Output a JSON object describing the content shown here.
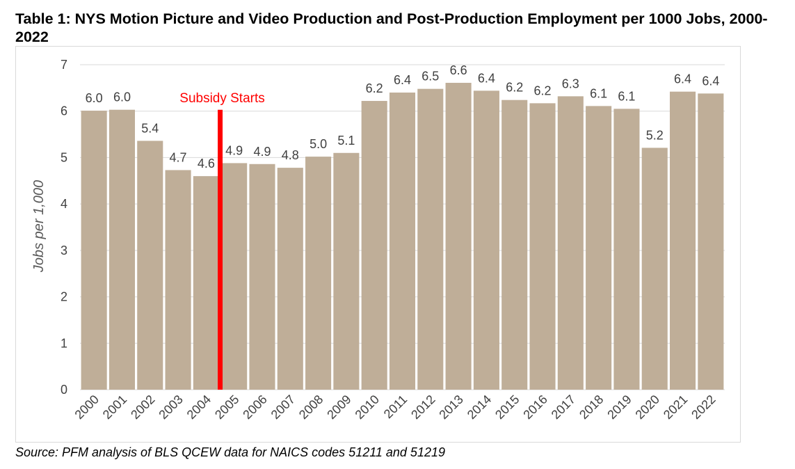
{
  "title": "Table 1: NYS Motion Picture and Video Production and Post-Production Employment per 1000 Jobs, 2000-2022",
  "source": "Source: PFM analysis of BLS QCEW data for NAICS codes 51211 and 51219",
  "chart_data": {
    "type": "bar",
    "title": "Table 1: NYS Motion Picture and Video Production and Post-Production Employment per 1000 Jobs, 2000-2022",
    "xlabel": "",
    "ylabel": "Jobs per 1,000",
    "ylim": [
      0,
      7
    ],
    "yticks": [
      0,
      1,
      2,
      3,
      4,
      5,
      6,
      7
    ],
    "grid": true,
    "categories": [
      "2000",
      "2001",
      "2002",
      "2003",
      "2004",
      "2005",
      "2006",
      "2007",
      "2008",
      "2009",
      "2010",
      "2011",
      "2012",
      "2013",
      "2014",
      "2015",
      "2016",
      "2017",
      "2018",
      "2019",
      "2020",
      "2021",
      "2022"
    ],
    "values": [
      6.01,
      6.03,
      5.36,
      4.73,
      4.6,
      4.88,
      4.86,
      4.78,
      5.02,
      5.1,
      6.22,
      6.4,
      6.48,
      6.61,
      6.44,
      6.24,
      6.17,
      6.32,
      6.11,
      6.05,
      5.21,
      6.42,
      6.38
    ],
    "data_labels": [
      "6.0",
      "6.0",
      "5.4",
      "4.7",
      "4.6",
      "4.9",
      "4.9",
      "4.8",
      "5.0",
      "5.1",
      "6.2",
      "6.4",
      "6.5",
      "6.6",
      "6.4",
      "6.2",
      "6.2",
      "6.3",
      "6.1",
      "6.1",
      "5.2",
      "6.4",
      "6.4"
    ],
    "annotation": {
      "text": "Subsidy Starts",
      "between": [
        "2004",
        "2005"
      ],
      "color": "#ff0000"
    },
    "bar_color": "#bfae98"
  }
}
